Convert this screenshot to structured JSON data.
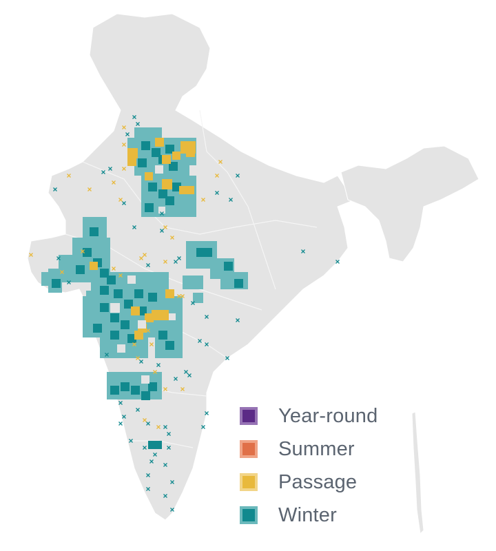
{
  "legend": [
    {
      "key": "year_round",
      "label": "Year-round",
      "color": "#5b2a86",
      "border": "#9673b4"
    },
    {
      "key": "summer",
      "label": "Summer",
      "color": "#e07048",
      "border": "#f0a486"
    },
    {
      "key": "passage",
      "label": "Passage",
      "color": "#e8b93c",
      "border": "#f2d588"
    },
    {
      "key": "winter",
      "label": "Winter",
      "color": "#11898e",
      "border": "#6cb9bc"
    }
  ],
  "map_colors": {
    "land": "#e4e4e4",
    "land_shade": "#d4d4d4",
    "border": "#ffffff",
    "winter_fill": "#11898e",
    "winter_light": "#6cb9bc",
    "passage_fill": "#e8b93c",
    "cross_teal": "#11898e",
    "cross_yellow": "#e8b93c"
  }
}
